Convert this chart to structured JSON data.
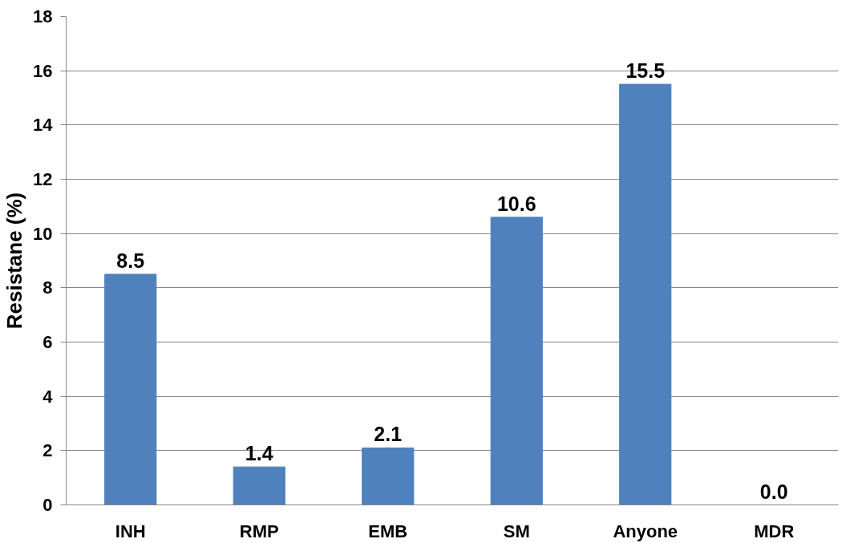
{
  "chart_data": {
    "type": "bar",
    "ylabel": "Resistane (%)",
    "categories": [
      "INH",
      "RMP",
      "EMB",
      "SM",
      "Anyone",
      "MDR"
    ],
    "values": [
      8.5,
      1.4,
      2.1,
      10.6,
      15.5,
      0.0
    ],
    "value_labels": [
      "8.5",
      "1.4",
      "2.1",
      "10.6",
      "15.5",
      "0.0"
    ],
    "color": "#4f81bd",
    "ylim": [
      0,
      18
    ],
    "yticks": [
      0,
      2,
      4,
      6,
      8,
      10,
      12,
      14,
      16,
      18
    ],
    "grid": "y"
  }
}
